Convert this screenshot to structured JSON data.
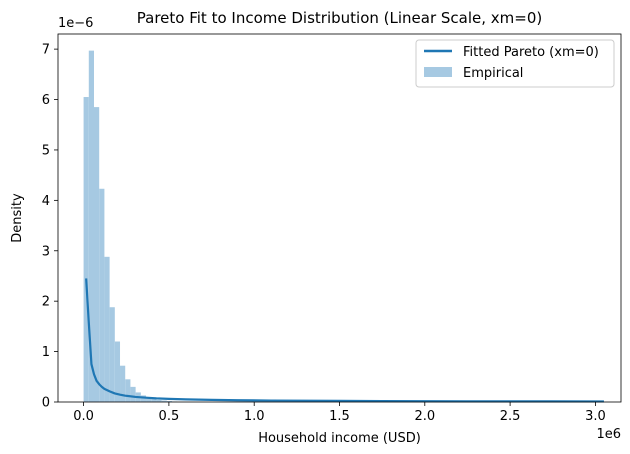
{
  "chart_data": {
    "type": "bar",
    "title": "Pareto Fit to Income Distribution (Linear Scale, xm=0)",
    "xlabel": "Household income (USD)",
    "ylabel": "Density",
    "x_offset_text": "1e6",
    "y_offset_text": "1e−6",
    "xlim": [
      -0.15,
      3.15
    ],
    "ylim": [
      0,
      7.3
    ],
    "x_ticks": [
      0.0,
      0.5,
      1.0,
      1.5,
      2.0,
      2.5,
      3.0
    ],
    "x_tick_labels": [
      "0.0",
      "0.5",
      "1.0",
      "1.5",
      "2.0",
      "2.5",
      "3.0"
    ],
    "y_ticks": [
      0,
      1,
      2,
      3,
      4,
      5,
      6,
      7
    ],
    "y_tick_labels": [
      "0",
      "1",
      "2",
      "3",
      "4",
      "5",
      "6",
      "7"
    ],
    "grid": false,
    "legend_position": "top-right",
    "legend": [
      {
        "label": "Fitted Pareto (xm=0)",
        "kind": "line",
        "color": "#1f77b4"
      },
      {
        "label": "Empirical",
        "kind": "patch",
        "color": "#a6c9e2"
      }
    ],
    "histogram": {
      "name": "Empirical",
      "color": "#a6c9e2",
      "bin_start": 0.0,
      "bin_width": 0.0305,
      "values": [
        6.05,
        6.97,
        5.85,
        4.23,
        2.88,
        1.88,
        1.2,
        0.72,
        0.45,
        0.3,
        0.19,
        0.13,
        0.09,
        0.06,
        0.04,
        0.03,
        0.02,
        0.01
      ]
    },
    "series": [
      {
        "name": "Fitted Pareto (xm=0)",
        "type": "line",
        "color": "#1f77b4",
        "x": [
          0.015,
          0.03,
          0.046,
          0.061,
          0.076,
          0.092,
          0.107,
          0.122,
          0.153,
          0.183,
          0.214,
          0.244,
          0.305,
          0.366,
          0.427,
          0.5,
          0.6,
          0.75,
          0.9,
          1.1,
          1.3,
          1.5,
          1.75,
          2.0,
          2.25,
          2.5,
          2.75,
          3.05
        ],
        "y": [
          2.45,
          1.6,
          0.75,
          0.55,
          0.42,
          0.35,
          0.3,
          0.26,
          0.21,
          0.17,
          0.145,
          0.125,
          0.1,
          0.085,
          0.072,
          0.062,
          0.052,
          0.042,
          0.035,
          0.029,
          0.025,
          0.022,
          0.019,
          0.016,
          0.014,
          0.013,
          0.012,
          0.011
        ]
      }
    ]
  }
}
